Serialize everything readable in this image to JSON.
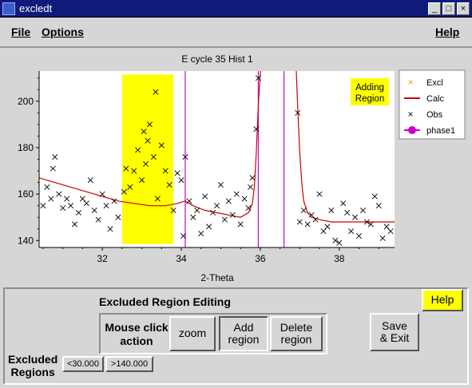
{
  "window": {
    "title": "excledt",
    "minimize_label": "_",
    "maximize_label": "□",
    "close_label": "×"
  },
  "menu": {
    "file_label": "File",
    "options_label": "Options",
    "help_label": "Help"
  },
  "plot": {
    "title": "E cycle 35 Hist 1",
    "status_label_line1": "Adding",
    "status_label_line2": "Region",
    "colors": {
      "excluded_region": "#ffff00",
      "calc": "#cc0000",
      "obs": "#000000",
      "phase": "#cc00cc",
      "excl": "#ff9900"
    }
  },
  "chart_data": {
    "type": "scatter",
    "title": "E cycle 35 Hist 1",
    "xlabel": "2-Theta",
    "ylabel": "",
    "xlim": [
      30.4,
      39.4
    ],
    "ylim": [
      137,
      213
    ],
    "x_ticks": [
      32,
      34,
      36,
      38
    ],
    "y_ticks": [
      140,
      160,
      180,
      200
    ],
    "legend": [
      "Excl",
      "Calc",
      "Obs",
      "phase1"
    ],
    "legend_position": "right",
    "excluded_region": [
      32.5,
      33.8
    ],
    "phase_reflections": [
      34.1,
      35.95,
      36.6
    ],
    "calc": {
      "name": "Calc",
      "x": [
        30.4,
        30.8,
        31.2,
        31.6,
        32.0,
        32.4,
        32.8,
        33.2,
        33.6,
        33.9,
        34.1,
        34.3,
        34.6,
        34.9,
        35.2,
        35.5,
        35.7,
        35.8,
        35.85,
        35.9,
        35.95,
        36.0,
        36.05
      ],
      "y": [
        167,
        165,
        163,
        161,
        159,
        157,
        156,
        155,
        155,
        156,
        157,
        155,
        153,
        152,
        151,
        150,
        152,
        156,
        163,
        178,
        198,
        212,
        218
      ]
    },
    "calc_right": {
      "name": "Calc",
      "x": [
        36.9,
        36.95,
        37.0,
        37.05,
        37.1,
        37.2,
        37.3,
        37.5,
        37.8,
        38.2,
        38.6,
        39.0,
        39.4
      ],
      "y": [
        218,
        196,
        178,
        165,
        157,
        152,
        150,
        149,
        148,
        148,
        148,
        148,
        148
      ]
    },
    "obs": {
      "name": "Obs",
      "x": [
        30.5,
        30.6,
        30.7,
        30.75,
        30.8,
        30.9,
        31.0,
        31.1,
        31.2,
        31.3,
        31.4,
        31.5,
        31.6,
        31.7,
        31.8,
        31.9,
        32.0,
        32.1,
        32.2,
        32.3,
        32.4,
        32.55,
        32.6,
        32.7,
        32.8,
        32.9,
        33.0,
        33.05,
        33.1,
        33.15,
        33.2,
        33.3,
        33.35,
        33.4,
        33.5,
        33.6,
        33.7,
        33.8,
        33.9,
        34.0,
        34.05,
        34.1,
        34.2,
        34.3,
        34.4,
        34.5,
        34.6,
        34.7,
        34.8,
        34.9,
        35.0,
        35.1,
        35.2,
        35.3,
        35.4,
        35.5,
        35.6,
        35.7,
        35.75,
        35.8,
        35.9,
        35.95,
        36.95,
        37.0,
        37.1,
        37.2,
        37.3,
        37.4,
        37.5,
        37.6,
        37.7,
        37.8,
        37.9,
        38.0,
        38.1,
        38.2,
        38.3,
        38.4,
        38.5,
        38.6,
        38.7,
        38.8,
        38.9,
        39.0,
        39.1,
        39.2,
        39.3
      ],
      "y": [
        155,
        163,
        158,
        171,
        176,
        160,
        154,
        158,
        155,
        147,
        152,
        158,
        156,
        166,
        153,
        149,
        160,
        155,
        145,
        157,
        150,
        161,
        171,
        163,
        170,
        179,
        166,
        187,
        173,
        183,
        190,
        176,
        204,
        158,
        181,
        170,
        164,
        153,
        169,
        166,
        142,
        176,
        157,
        150,
        153,
        143,
        159,
        146,
        152,
        155,
        164,
        149,
        157,
        151,
        160,
        147,
        158,
        154,
        163,
        167,
        188,
        210,
        195,
        148,
        153,
        147,
        151,
        149,
        160,
        144,
        146,
        153,
        140,
        139,
        156,
        152,
        144,
        150,
        142,
        153,
        148,
        147,
        159,
        155,
        141,
        146,
        144
      ]
    }
  },
  "legend": {
    "excl_label": "Excl",
    "calc_label": "Calc",
    "obs_label": "Obs",
    "phase_label": "phase1"
  },
  "controls": {
    "section_title": "Excluded Region Editing",
    "help_button": "Help",
    "mouse_click_label_line1": "Mouse click",
    "mouse_click_label_line2": "action",
    "zoom_button": "zoom",
    "add_region_line1": "Add",
    "add_region_line2": "region",
    "delete_region_line1": "Delete",
    "delete_region_line2": "region",
    "save_exit_line1": "Save",
    "save_exit_line2": "& Exit",
    "excluded_label_line1": "Excluded",
    "excluded_label_line2": "Regions",
    "region_buttons": [
      "<30.000",
      ">140.000"
    ],
    "selected_action": "Add region"
  }
}
